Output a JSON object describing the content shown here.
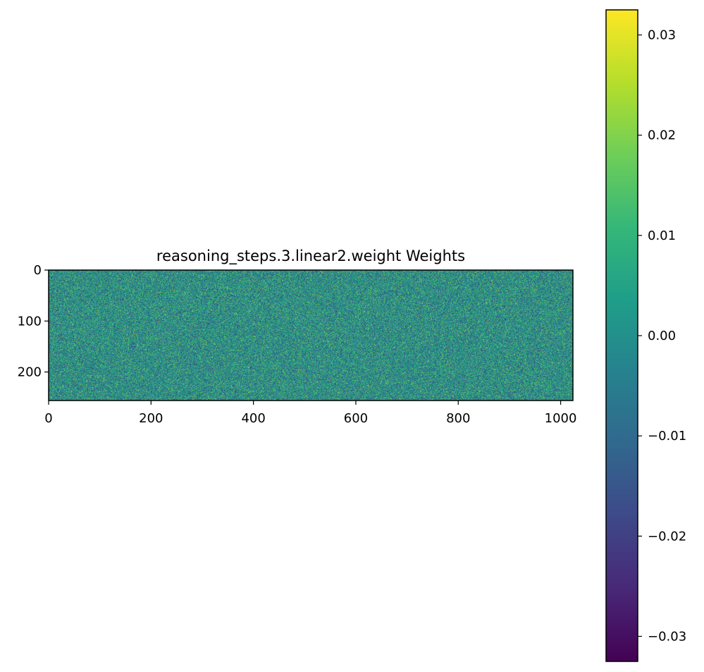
{
  "chart_data": {
    "type": "heatmap",
    "title": "reasoning_steps.3.linear2.weight Weights",
    "xlabel": "",
    "ylabel": "",
    "shape": [
      256,
      1024
    ],
    "xlim": [
      0,
      1024
    ],
    "ylim": [
      256,
      0
    ],
    "x_ticks": [
      0,
      200,
      400,
      600,
      800,
      1000
    ],
    "y_ticks": [
      0,
      100,
      200
    ],
    "colormap": "viridis",
    "colorbar": {
      "range": [
        -0.0325,
        0.0325
      ],
      "ticks": [
        -0.03,
        -0.02,
        -0.01,
        0.0,
        0.01,
        0.02,
        0.03
      ],
      "tick_labels": [
        "−0.03",
        "−0.02",
        "−0.01",
        "0.00",
        "0.01",
        "0.02",
        "0.03"
      ]
    },
    "value_distribution": {
      "mean": 0.0,
      "std": 0.011,
      "pattern": "random noise"
    },
    "grid": false
  },
  "colors": {
    "viridis": [
      "#440154",
      "#482878",
      "#3e4989",
      "#31688e",
      "#26828e",
      "#1f9e89",
      "#35b779",
      "#6ece58",
      "#b5de2b",
      "#fde725"
    ],
    "axes": "#000000",
    "background": "#ffffff"
  }
}
